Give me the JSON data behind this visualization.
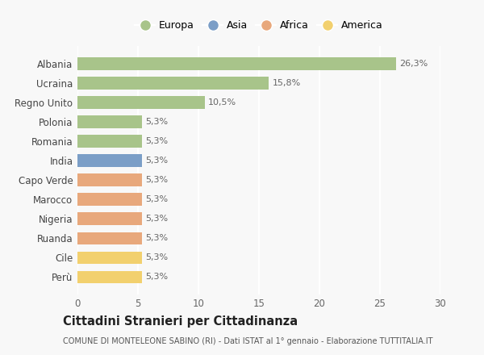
{
  "categories": [
    "Albania",
    "Ucraina",
    "Regno Unito",
    "Polonia",
    "Romania",
    "India",
    "Capo Verde",
    "Marocco",
    "Nigeria",
    "Ruanda",
    "Cile",
    "Perù"
  ],
  "values": [
    26.3,
    15.8,
    10.5,
    5.3,
    5.3,
    5.3,
    5.3,
    5.3,
    5.3,
    5.3,
    5.3,
    5.3
  ],
  "colors": [
    "#a8c48a",
    "#a8c48a",
    "#a8c48a",
    "#a8c48a",
    "#a8c48a",
    "#7b9ec7",
    "#e8a87c",
    "#e8a87c",
    "#e8a87c",
    "#e8a87c",
    "#f2d06e",
    "#f2d06e"
  ],
  "labels": [
    "26,3%",
    "15,8%",
    "10,5%",
    "5,3%",
    "5,3%",
    "5,3%",
    "5,3%",
    "5,3%",
    "5,3%",
    "5,3%",
    "5,3%",
    "5,3%"
  ],
  "legend_labels": [
    "Europa",
    "Asia",
    "Africa",
    "America"
  ],
  "legend_colors": [
    "#a8c48a",
    "#7b9ec7",
    "#e8a87c",
    "#f2d06e"
  ],
  "xlim": [
    0,
    30
  ],
  "xticks": [
    0,
    5,
    10,
    15,
    20,
    25,
    30
  ],
  "title": "Cittadini Stranieri per Cittadinanza",
  "subtitle": "COMUNE DI MONTELEONE SABINO (RI) - Dati ISTAT al 1° gennaio - Elaborazione TUTTITALIA.IT",
  "bg_color": "#f8f8f8",
  "grid_color": "#ffffff",
  "bar_height": 0.65
}
